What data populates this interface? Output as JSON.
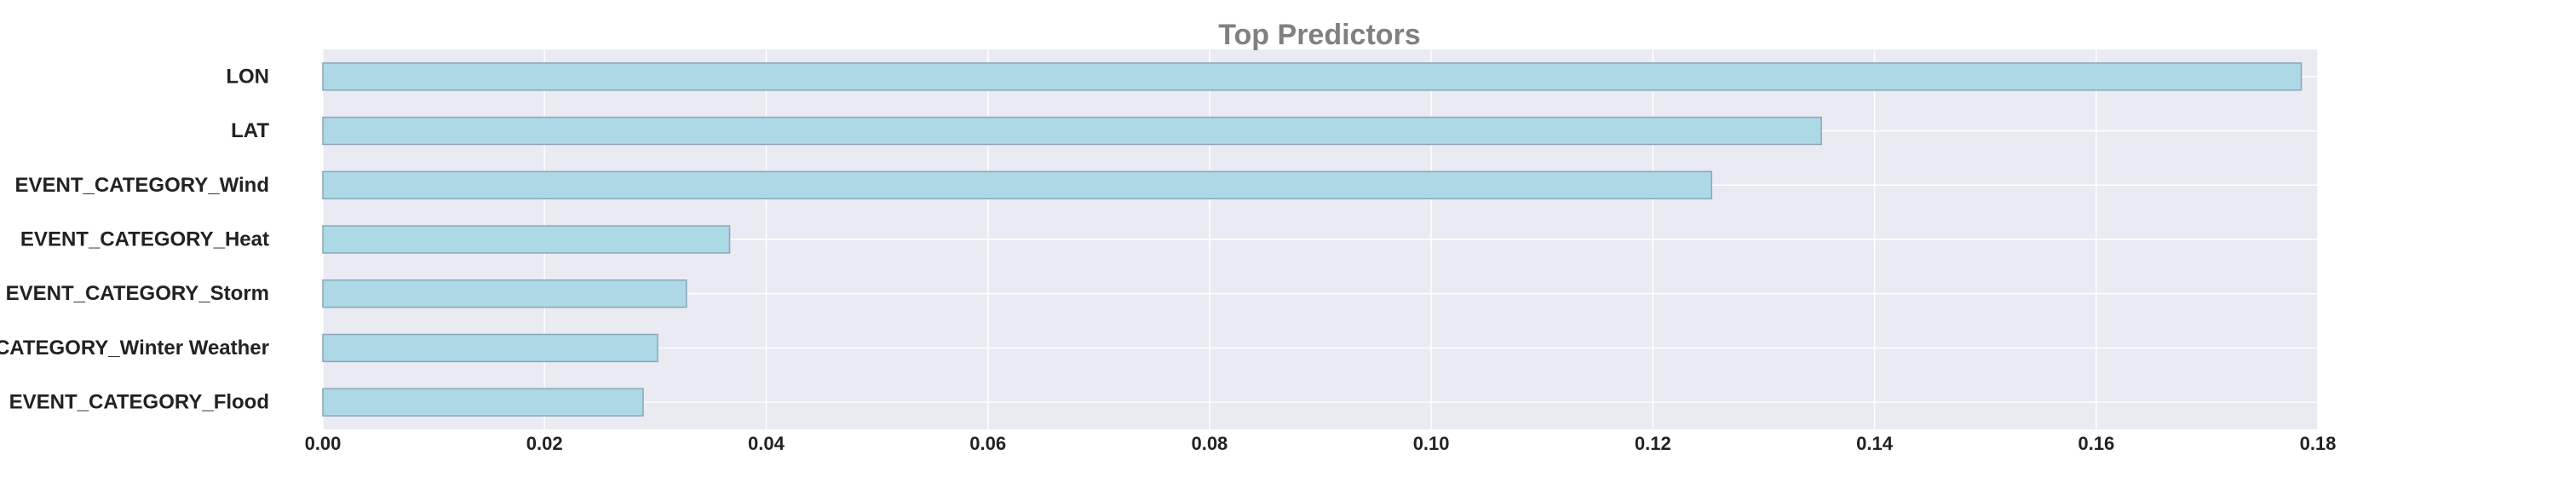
{
  "chart_data": {
    "type": "bar",
    "orientation": "horizontal",
    "title": "Top Predictors",
    "xlabel": "",
    "ylabel": "",
    "categories": [
      "LON",
      "LAT",
      "EVENT_CATEGORY_Wind",
      "EVENT_CATEGORY_Heat",
      "EVENT_CATEGORY_Storm",
      "EVENT_CATEGORY_Winter Weather",
      "EVENT_CATEGORY_Flood"
    ],
    "values": [
      0.1785,
      0.1352,
      0.1253,
      0.0367,
      0.0328,
      0.0302,
      0.0289
    ],
    "xlim": [
      0,
      0.18
    ],
    "xticks": [
      "0.00",
      "0.02",
      "0.04",
      "0.06",
      "0.08",
      "0.10",
      "0.12",
      "0.14",
      "0.16",
      "0.18"
    ],
    "grid": true,
    "legend": "none",
    "colors": {
      "bar_fill": "#add8e6",
      "bar_edge": "#8aa7b5",
      "plot_background": "#eaeaf2",
      "grid": "#ffffff",
      "title": "#808080",
      "labels": "#222222"
    }
  }
}
